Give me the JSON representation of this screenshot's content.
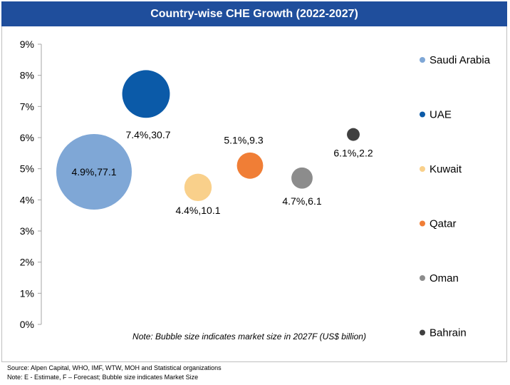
{
  "chart_data": {
    "type": "scatter",
    "title": "Country-wise CHE Growth (2022-2027)",
    "ylim": [
      0,
      9
    ],
    "y_ticks": [
      "0%",
      "1%",
      "2%",
      "3%",
      "4%",
      "5%",
      "6%",
      "7%",
      "8%",
      "9%"
    ],
    "series": [
      {
        "name": "Saudi Arabia",
        "x": 1,
        "y": 4.9,
        "size": 77.1,
        "label": "4.9%,77.1",
        "color": "#7fa7d6"
      },
      {
        "name": "UAE",
        "x": 2,
        "y": 7.4,
        "size": 30.7,
        "label": "7.4%,30.7",
        "color": "#0b5aa8"
      },
      {
        "name": "Kuwait",
        "x": 3,
        "y": 4.4,
        "size": 10.1,
        "label": "4.4%,10.1",
        "color": "#f9d08b"
      },
      {
        "name": "Qatar",
        "x": 4,
        "y": 5.1,
        "size": 9.3,
        "label": "5.1%,9.3",
        "color": "#f07e36"
      },
      {
        "name": "Oman",
        "x": 5,
        "y": 4.7,
        "size": 6.1,
        "label": "4.7%,6.1",
        "color": "#8c8c8c"
      },
      {
        "name": "Bahrain",
        "x": 6,
        "y": 6.1,
        "size": 2.2,
        "label": "6.1%,2.2",
        "color": "#404040"
      }
    ],
    "annotation": "Note: Bubble size indicates market size in 2027F (US$ billion)",
    "legend_position": "right"
  },
  "footer": {
    "source": "Source:  Alpen Capital, WHO, IMF,  WTW, MOH and Statistical organizations",
    "note": "Note: E - Estimate, F – Forecast; Bubble size indicates Market Size"
  }
}
